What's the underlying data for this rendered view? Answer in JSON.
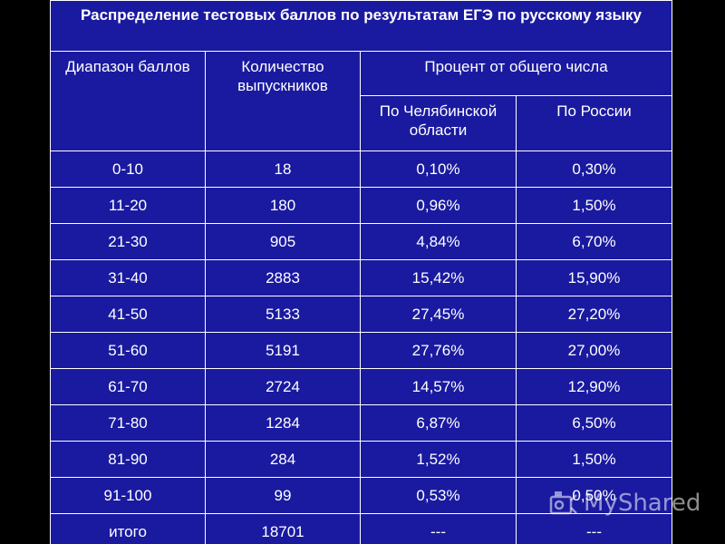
{
  "title": "Распределение тестовых баллов по результатам ЕГЭ по русскому языку",
  "headers": {
    "range": "Диапазон баллов",
    "count": "Количество выпускников",
    "percent_group": "Процент от общего числа",
    "chelyabinsk": "По Челябинской области",
    "russia": "По России"
  },
  "rows": [
    {
      "range": "0-10",
      "count": "18",
      "chelyabinsk": "0,10%",
      "russia": "0,30%"
    },
    {
      "range": "11-20",
      "count": "180",
      "chelyabinsk": "0,96%",
      "russia": "1,50%"
    },
    {
      "range": "21-30",
      "count": "905",
      "chelyabinsk": "4,84%",
      "russia": "6,70%"
    },
    {
      "range": "31-40",
      "count": "2883",
      "chelyabinsk": "15,42%",
      "russia": "15,90%"
    },
    {
      "range": "41-50",
      "count": "5133",
      "chelyabinsk": "27,45%",
      "russia": "27,20%"
    },
    {
      "range": "51-60",
      "count": "5191",
      "chelyabinsk": "27,76%",
      "russia": "27,00%"
    },
    {
      "range": "61-70",
      "count": "2724",
      "chelyabinsk": "14,57%",
      "russia": "12,90%"
    },
    {
      "range": "71-80",
      "count": "1284",
      "chelyabinsk": "6,87%",
      "russia": "6,50%"
    },
    {
      "range": "81-90",
      "count": "284",
      "chelyabinsk": "1,52%",
      "russia": "1,50%"
    },
    {
      "range": "91-100",
      "count": "99",
      "chelyabinsk": "0,53%",
      "russia": "0,50%"
    },
    {
      "range": "итого",
      "count": "18701",
      "chelyabinsk": "---",
      "russia": "---"
    }
  ],
  "watermark": "MyShared",
  "colors": {
    "background": "#000000",
    "table_fill": "#1a1aa0",
    "text": "#ffffff"
  }
}
